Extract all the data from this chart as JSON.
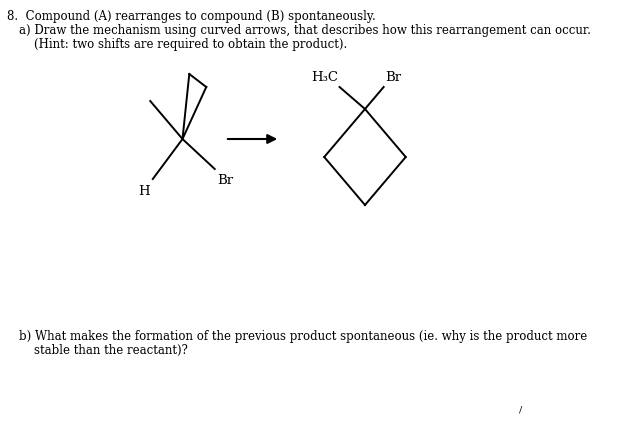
{
  "title_line1": "8.  Compound (A) rearranges to compound (B) spontaneously.",
  "title_line2": "a) Draw the mechanism using curved arrows, that describes how this rearrangement can occur.",
  "title_line3": "    (Hint: two shifts are required to obtain the product).",
  "bottom_line1": "b) What makes the formation of the previous product spontaneous (ie. why is the product more",
  "bottom_line2": "    stable than the reactant)?",
  "tick_mark": "/",
  "text_color": "#000000",
  "background_color": "#ffffff",
  "font_size": 8.5
}
